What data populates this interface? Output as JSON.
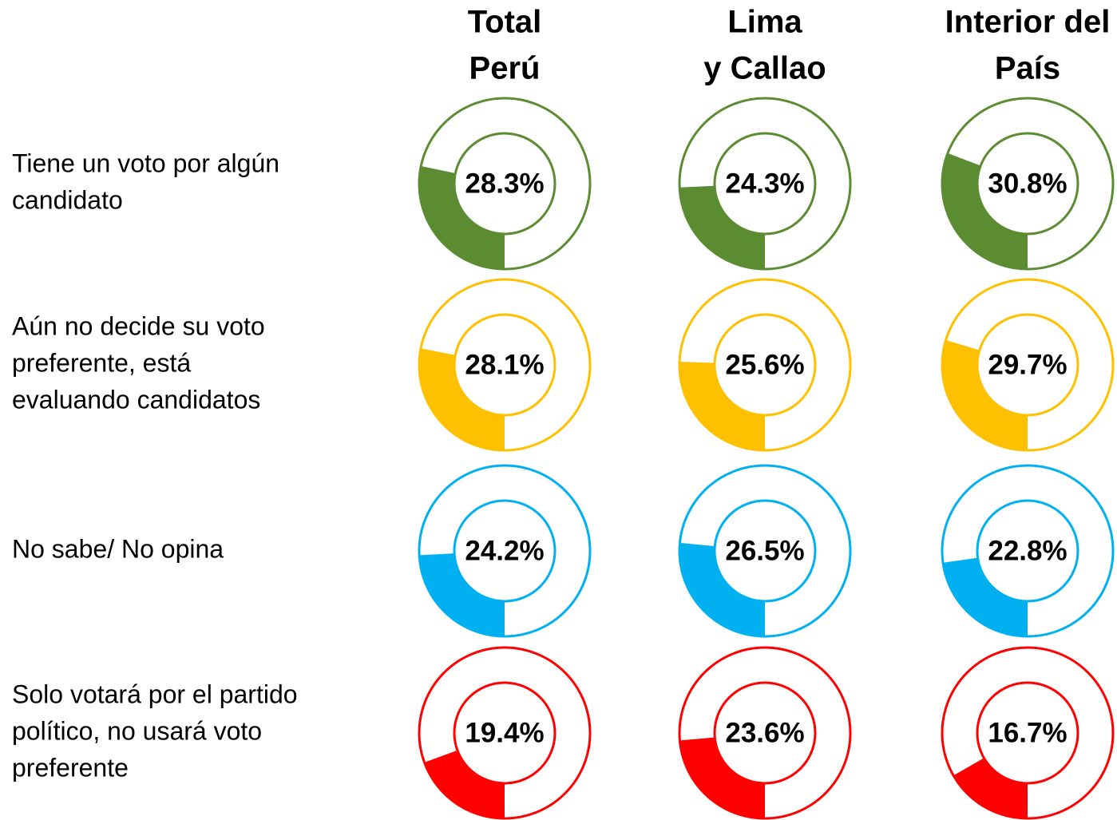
{
  "chart_data": {
    "type": "donut",
    "categories": [
      [
        "Total",
        "Perú"
      ],
      [
        "Lima",
        "y Callao"
      ],
      [
        "Interior del",
        "País"
      ]
    ],
    "series": [
      {
        "name": [
          "Tiene un voto por algún",
          "candidato"
        ],
        "color": "#5b8c32",
        "values": [
          28.3,
          24.3,
          30.8
        ],
        "value_labels": [
          "28.3%",
          "24.3%",
          "30.8%"
        ]
      },
      {
        "name": [
          "Aún no decide su voto",
          "preferente, está",
          "evaluando candidatos"
        ],
        "color": "#ffc000",
        "values": [
          28.1,
          25.6,
          29.7
        ],
        "value_labels": [
          "28.1%",
          "25.6%",
          "29.7%"
        ]
      },
      {
        "name": [
          "No sabe/ No opina"
        ],
        "color": "#00b0f0",
        "values": [
          24.2,
          26.5,
          22.8
        ],
        "value_labels": [
          "24.2%",
          "26.5%",
          "22.8%"
        ]
      },
      {
        "name": [
          "Solo votará por el partido",
          "político, no usará voto",
          "preferente"
        ],
        "color": "#ff0000",
        "values": [
          19.4,
          23.6,
          16.7
        ],
        "value_labels": [
          "19.4%",
          "23.6%",
          "16.7%"
        ]
      }
    ]
  }
}
